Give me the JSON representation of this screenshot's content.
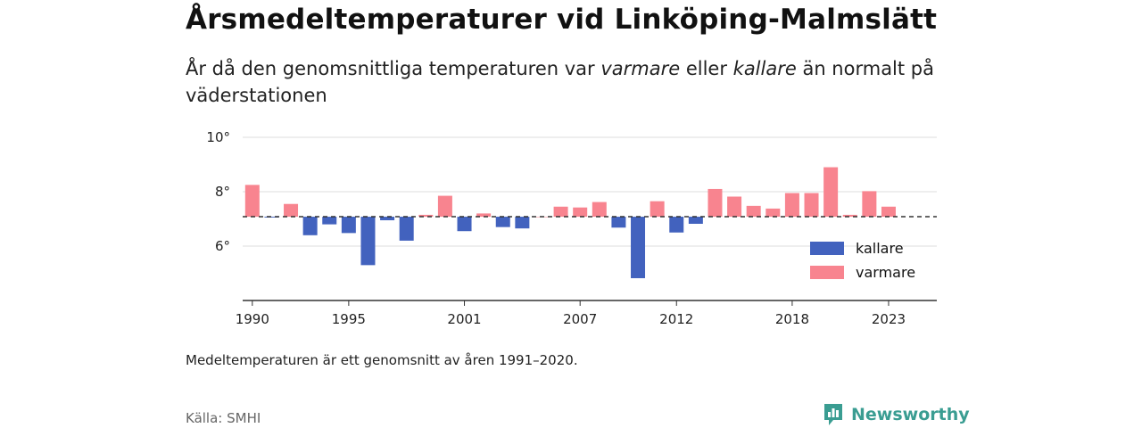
{
  "title": "Årsmedeltemperaturer vid Linköping-Malmslätt",
  "subtitle": {
    "before": "År då den genomsnittliga temperaturen var ",
    "warm_word": "varmare",
    "middle": " eller ",
    "cold_word": "kallare",
    "after": " än normalt på väderstationen"
  },
  "note": "Medeltemperaturen är ett genomsnitt av åren 1991–2020.",
  "source": "Källa: SMHI",
  "brand": {
    "name": "Newsworthy",
    "icon": "newsworthy-logo-icon"
  },
  "colors": {
    "kallare": "#4262be",
    "varmare": "#f8848f",
    "grid": "#dddddd",
    "axis": "#333333",
    "brand": "#3a9d92"
  },
  "chart_data": {
    "type": "bar",
    "baseline": 7.08,
    "ylim": [
      4.0,
      10.0
    ],
    "yticks": [
      6,
      8,
      10
    ],
    "ytick_labels": [
      "6°",
      "8°",
      "10°"
    ],
    "xlim": [
      1989.5,
      2025.5
    ],
    "xticks": [
      1990,
      1995,
      2001,
      2007,
      2012,
      2018,
      2023
    ],
    "xtick_labels": [
      "1990",
      "1995",
      "2001",
      "2007",
      "2012",
      "2018",
      "2023"
    ],
    "legend": {
      "position": "bottom-right",
      "entries": [
        "kallare",
        "varmare"
      ]
    },
    "series": [
      {
        "name": "temperature",
        "x": [
          1990,
          1991,
          1992,
          1993,
          1994,
          1995,
          1996,
          1997,
          1998,
          1999,
          2000,
          2001,
          2002,
          2003,
          2004,
          2005,
          2006,
          2007,
          2008,
          2009,
          2010,
          2011,
          2012,
          2013,
          2014,
          2015,
          2016,
          2017,
          2018,
          2019,
          2020,
          2021,
          2022,
          2023
        ],
        "values": [
          8.25,
          7.05,
          7.55,
          6.4,
          6.8,
          6.48,
          5.3,
          6.95,
          6.2,
          7.15,
          7.85,
          6.55,
          7.2,
          6.7,
          6.65,
          7.08,
          7.45,
          7.42,
          7.62,
          6.68,
          4.82,
          7.65,
          6.5,
          6.82,
          8.1,
          7.82,
          7.48,
          7.38,
          7.95,
          7.95,
          8.9,
          7.15,
          8.02,
          7.45
        ]
      }
    ]
  }
}
